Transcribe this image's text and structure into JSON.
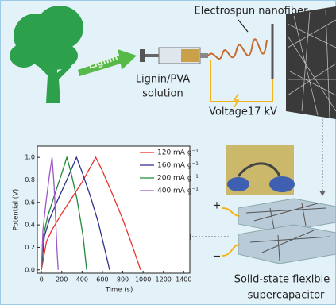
{
  "labels": {
    "nanofiber": "Electrospun nanofiber",
    "lignin": "Lignin",
    "solution_1": "Lignin/PVA",
    "solution_2": "solution",
    "voltage": "Voltage17 kV",
    "plus": "+",
    "minus": "−",
    "device_1": "Solid-state flexible",
    "device_2": "supercapacitor"
  },
  "chart_data": {
    "type": "line",
    "xlabel": "Time (s)",
    "ylabel": "Potential (V)",
    "xlim": [
      -40,
      1460
    ],
    "ylim": [
      -0.03,
      1.1
    ],
    "xticks": [
      0,
      200,
      400,
      600,
      800,
      1000,
      1200,
      1400
    ],
    "yticks": [
      {
        "value": 0,
        "label": "0.0"
      },
      {
        "value": 0.2,
        "label": "0.2"
      },
      {
        "value": 0.4,
        "label": "0.4"
      },
      {
        "value": 0.6,
        "label": "0.6"
      },
      {
        "value": 0.8,
        "label": "0.8"
      },
      {
        "value": 1,
        "label": "1.0"
      }
    ],
    "series": [
      {
        "name": "120 mA g⁻¹",
        "color": "#e8322b",
        "x": [
          0,
          50,
          100,
          200,
          300,
          400,
          535,
          600,
          700,
          800,
          900,
          975
        ],
        "values": [
          0,
          0.25,
          0.35,
          0.5,
          0.64,
          0.78,
          1.0,
          0.88,
          0.67,
          0.45,
          0.2,
          0
        ]
      },
      {
        "name": "160 mA g⁻¹",
        "color": "#2f2f8f",
        "x": [
          0,
          30,
          80,
          150,
          250,
          345,
          400,
          480,
          560,
          640,
          670
        ],
        "values": [
          0,
          0.3,
          0.45,
          0.6,
          0.8,
          1.0,
          0.87,
          0.66,
          0.42,
          0.12,
          0
        ]
      },
      {
        "name": "200 mA g⁻¹",
        "color": "#1f8a3a",
        "x": [
          0,
          20,
          60,
          120,
          190,
          250,
          290,
          350,
          410,
          445
        ],
        "values": [
          0,
          0.3,
          0.47,
          0.64,
          0.83,
          1.0,
          0.87,
          0.63,
          0.3,
          0
        ]
      },
      {
        "name": "400 mA g⁻¹",
        "color": "#9b59c9",
        "x": [
          0,
          15,
          45,
          80,
          105,
          125,
          140,
          155,
          165
        ],
        "values": [
          0,
          0.35,
          0.6,
          0.85,
          1.0,
          0.75,
          0.45,
          0.15,
          0
        ]
      }
    ]
  }
}
